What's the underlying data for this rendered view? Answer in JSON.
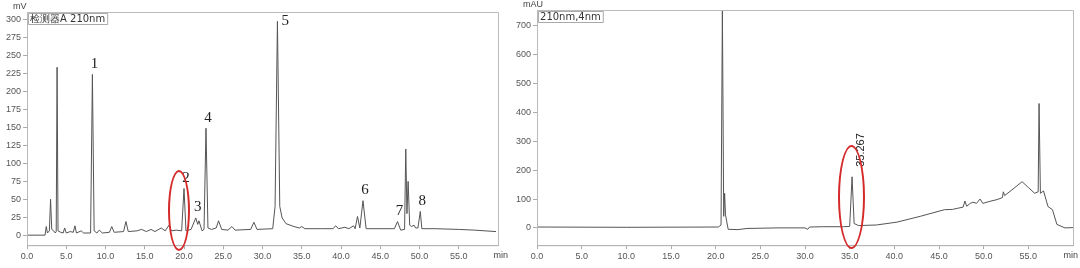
{
  "chart_data": [
    {
      "type": "line",
      "ylabel": "mV",
      "xlabel": "min",
      "marker": "none",
      "line_style": "solid",
      "xlim": [
        0,
        60
      ],
      "ylim": [
        -14,
        311
      ],
      "xticks": [
        {
          "value": 0,
          "label": "0.0"
        },
        {
          "value": 5,
          "label": "5.0"
        },
        {
          "value": 10,
          "label": "10.0"
        },
        {
          "value": 15,
          "label": "15.0"
        },
        {
          "value": 20,
          "label": "20.0"
        },
        {
          "value": 25,
          "label": "25.0"
        },
        {
          "value": 30,
          "label": "30.0"
        },
        {
          "value": 35,
          "label": "35.0"
        },
        {
          "value": 40,
          "label": "40.0"
        },
        {
          "value": 45,
          "label": "45.0"
        },
        {
          "value": 50,
          "label": "50.0"
        },
        {
          "value": 55,
          "label": "55.0"
        }
      ],
      "yticks": [
        0,
        25,
        50,
        75,
        100,
        125,
        150,
        175,
        200,
        225,
        250,
        275,
        300
      ],
      "x": [
        0,
        2.3,
        2.45,
        2.6,
        2.85,
        3.0,
        3.15,
        3.4,
        3.6,
        3.72,
        3.83,
        3.95,
        4.3,
        4.6,
        4.8,
        5.0,
        5.5,
        5.9,
        6.1,
        6.3,
        6.9,
        7.2,
        8.1,
        8.33,
        8.55,
        8.9,
        9.2,
        9.6,
        10.5,
        10.8,
        11.1,
        12.3,
        12.6,
        12.9,
        14.0,
        14.6,
        15.2,
        15.8,
        16.3,
        17.1,
        17.6,
        18.1,
        18.4,
        19.0,
        19.7,
        20.0,
        20.25,
        20.9,
        21.5,
        21.75,
        21.9,
        22.3,
        22.55,
        22.8,
        23.05,
        23.5,
        24.1,
        24.4,
        24.8,
        25.6,
        26.1,
        26.5,
        28.5,
        28.9,
        29.3,
        31.3,
        31.6,
        31.9,
        32.2,
        32.5,
        33.0,
        34.0,
        34.7,
        35.0,
        35.4,
        37.5,
        39.0,
        39.3,
        39.7,
        40.5,
        41.0,
        41.6,
        41.8,
        42.1,
        42.4,
        42.8,
        43.2,
        46.8,
        47.2,
        47.6,
        48.1,
        48.25,
        48.4,
        48.55,
        48.75,
        49.0,
        49.3,
        49.5,
        49.8,
        50.1,
        50.3,
        52.0,
        55.0,
        57.0,
        59.7
      ],
      "series": [
        {
          "color": "#555555",
          "values": [
            0,
            0,
            12,
            3,
            6,
            50,
            8,
            6,
            3,
            5,
            234,
            6,
            4,
            3,
            10,
            3,
            5,
            4,
            13,
            3,
            6,
            3,
            3,
            224,
            6,
            3,
            7,
            3,
            4,
            12,
            4,
            5,
            19,
            5,
            6,
            8,
            5,
            8,
            5,
            10,
            6,
            14,
            6,
            7,
            6,
            65,
            6,
            8,
            24,
            15,
            20,
            6,
            8,
            149,
            10,
            8,
            10,
            20,
            8,
            7,
            12,
            7,
            8,
            18,
            8,
            9,
            40,
            298,
            40,
            24,
            16,
            12,
            10,
            12,
            9,
            9,
            9,
            13,
            9,
            11,
            9,
            13,
            9,
            26,
            10,
            48,
            9,
            9,
            19,
            7,
            8,
            120,
            30,
            75,
            14,
            12,
            14,
            10,
            10,
            33,
            9,
            9,
            8,
            7,
            5
          ]
        }
      ],
      "annotations": [
        "检测器A 210nm",
        {
          "text": "1",
          "x": 8.33,
          "y": 224
        },
        {
          "text": "2",
          "x": 20.0,
          "y": 65
        },
        {
          "text": "3",
          "x": 21.5,
          "y": 24
        },
        {
          "text": "4",
          "x": 22.8,
          "y": 149
        },
        {
          "text": "5",
          "x": 31.9,
          "y": 298
        },
        {
          "text": "6",
          "x": 42.8,
          "y": 48
        },
        {
          "text": "7",
          "x": 47.2,
          "y": 19
        },
        {
          "text": "8",
          "x": 50.1,
          "y": 33
        }
      ]
    },
    {
      "type": "line",
      "ylabel": "mAU",
      "xlabel": "min",
      "marker": "none",
      "line_style": "solid",
      "xlim": [
        0,
        60
      ],
      "ylim": [
        -60,
        755
      ],
      "xticks": [
        {
          "value": 0,
          "label": "0.0"
        },
        {
          "value": 5,
          "label": "5.0"
        },
        {
          "value": 10,
          "label": "10.0"
        },
        {
          "value": 15,
          "label": "15.0"
        },
        {
          "value": 20,
          "label": "20.0"
        },
        {
          "value": 25,
          "label": "25.0"
        },
        {
          "value": 30,
          "label": "30.0"
        },
        {
          "value": 35,
          "label": "35.0"
        },
        {
          "value": 40,
          "label": "40.0"
        },
        {
          "value": 45,
          "label": "45.0"
        },
        {
          "value": 50,
          "label": "50.0"
        },
        {
          "value": 55,
          "label": "55.0"
        }
      ],
      "yticks": [
        0,
        100,
        200,
        300,
        400,
        500,
        600,
        700
      ],
      "x": [
        0,
        10,
        20.3,
        20.6,
        20.75,
        20.9,
        21.0,
        21.1,
        21.4,
        22.5,
        23.5,
        27,
        30.0,
        30.3,
        30.5,
        32,
        34.3,
        35.0,
        35.267,
        35.5,
        36,
        38,
        40.3,
        42.9,
        45.6,
        46.5,
        47.1,
        47.7,
        47.9,
        48.1,
        48.5,
        48.8,
        49.2,
        49.6,
        49.9,
        50.7,
        51.5,
        52.1,
        52.2,
        52.35,
        53.5,
        54.3,
        55.0,
        55.7,
        56.1,
        56.2,
        56.35,
        56.7,
        57.2,
        57.7,
        58.2,
        59.1,
        60
      ],
      "series": [
        {
          "color": "#555555",
          "values": [
            3,
            2,
            3,
            10,
            755,
            40,
            120,
            45,
            -5,
            -6,
            -2,
            0,
            0,
            -5,
            3,
            4,
            4,
            5,
            177,
            15,
            8,
            10,
            20,
            40,
            63,
            64,
            68,
            72,
            93,
            75,
            85,
            89,
            85,
            100,
            85,
            92,
            98,
            105,
            125,
            112,
            140,
            160,
            140,
            120,
            125,
            431,
            120,
            128,
            74,
            63,
            12,
            0,
            1
          ]
        }
      ],
      "annotations": [
        "210nm,4nm",
        {
          "text": "35.267",
          "x": 35.267,
          "y": 177
        }
      ]
    }
  ]
}
